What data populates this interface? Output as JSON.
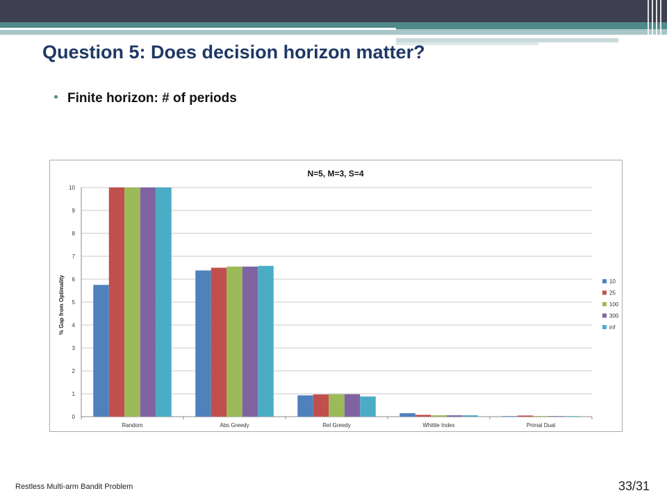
{
  "slide": {
    "title": "Question 5: Does decision horizon matter?",
    "bullet": "Finite horizon: # of periods",
    "footer": "Restless Multi-arm Bandit Problem",
    "page_number": "33/31"
  },
  "colors": {
    "title": "#1f3864",
    "accent": "#4f8a8b",
    "series": [
      "#4f81bd",
      "#c0504d",
      "#9bbb59",
      "#8064a2",
      "#4bacc6"
    ]
  },
  "chart_data": {
    "type": "bar",
    "title": "N=5, M=3, S=4",
    "xlabel": "",
    "ylabel": "% Gap from Optimality",
    "ylim": [
      0,
      10
    ],
    "yticks": [
      0,
      1,
      2,
      3,
      4,
      5,
      6,
      7,
      8,
      9,
      10
    ],
    "grid": true,
    "legend_position": "right",
    "categories": [
      "Random",
      "Abs Greedy",
      "Rel Greedy",
      "Whittle Index",
      "Primal Dual"
    ],
    "series": [
      {
        "name": "10",
        "values": [
          5.75,
          6.38,
          0.93,
          0.15,
          0.02
        ]
      },
      {
        "name": "25",
        "values": [
          10,
          6.5,
          0.97,
          0.08,
          0.05
        ]
      },
      {
        "name": "100",
        "values": [
          10,
          6.55,
          0.98,
          0.06,
          0.03
        ]
      },
      {
        "name": "300",
        "values": [
          10,
          6.55,
          0.98,
          0.06,
          0.02
        ]
      },
      {
        "name": "inf",
        "values": [
          10,
          6.58,
          0.88,
          0.06,
          0.02
        ]
      }
    ]
  }
}
